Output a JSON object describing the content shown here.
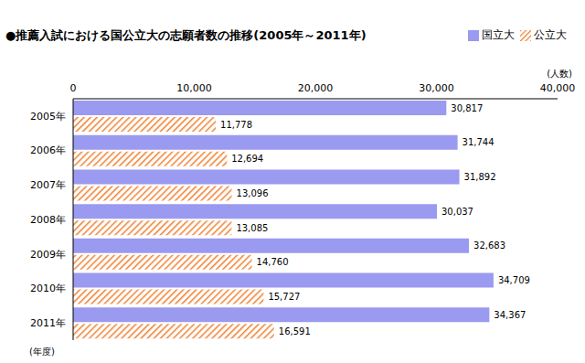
{
  "chart_data": {
    "type": "bar",
    "orientation": "horizontal",
    "title": "●推薦入試における国公立大の志願者数の推移(2005年～2011年)",
    "categories": [
      "2005年",
      "2006年",
      "2007年",
      "2008年",
      "2009年",
      "2010年",
      "2011年"
    ],
    "series": [
      {
        "name": "国立大",
        "color": "#9a9af0",
        "values": [
          30817,
          31744,
          31892,
          30037,
          32683,
          34709,
          34367
        ],
        "value_labels": [
          "30,817",
          "31,744",
          "31,892",
          "30,037",
          "32,683",
          "34,709",
          "34,367"
        ]
      },
      {
        "name": "公立大",
        "color": "#f08030",
        "values": [
          11778,
          12694,
          13096,
          13085,
          14760,
          15727,
          16591
        ],
        "value_labels": [
          "11,778",
          "12,694",
          "13,096",
          "13,085",
          "14,760",
          "15,727",
          "16,591"
        ]
      }
    ],
    "xlim": [
      0,
      40000
    ],
    "xticks": [
      0,
      {
        "value": 10000,
        "label": "10,000"
      },
      {
        "value": 20000,
        "label": "20,000"
      },
      {
        "value": 30000,
        "label": "30,000"
      },
      {
        "value": 40000,
        "label": "40,000"
      }
    ],
    "x_label": "(人数)",
    "y_label": "(年度)",
    "grid": false,
    "legend": "top right",
    "data_labels": true
  }
}
